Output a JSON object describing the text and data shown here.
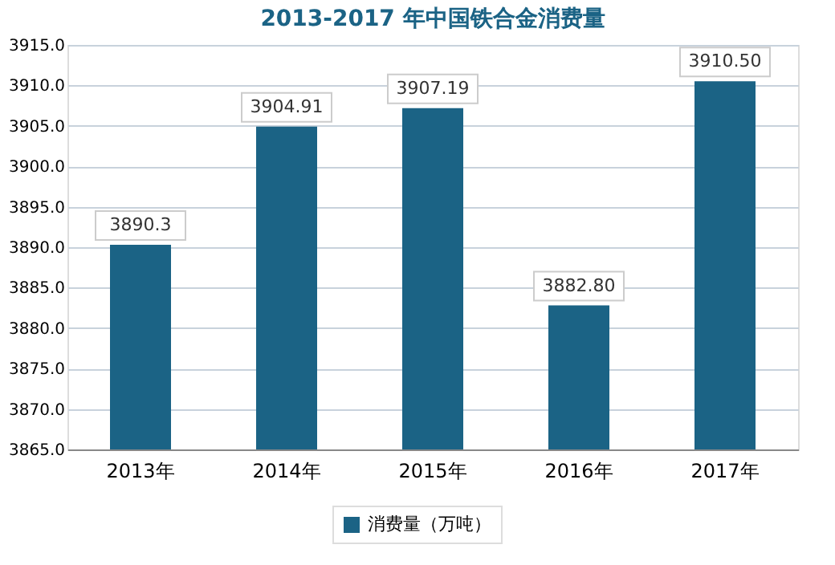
{
  "chart_data": {
    "type": "bar",
    "title": "2013-2017 年中国铁合金消费量",
    "categories": [
      "2013年",
      "2014年",
      "2015年",
      "2016年",
      "2017年"
    ],
    "series": [
      {
        "name": "消费量（万吨）",
        "color": "#1b6385",
        "values": [
          3890.3,
          3904.91,
          3907.19,
          3882.8,
          3910.5
        ],
        "value_labels": [
          "3890.3",
          "3904.91",
          "3907.19",
          "3882.80",
          "3910.50"
        ]
      }
    ],
    "ylim": [
      3865.0,
      3915.0
    ],
    "yticks": [
      {
        "value": 3865,
        "label": "3865.0"
      },
      {
        "value": 3870,
        "label": "3870.0"
      },
      {
        "value": 3875,
        "label": "3875.0"
      },
      {
        "value": 3880,
        "label": "3880.0"
      },
      {
        "value": 3885,
        "label": "3885.0"
      },
      {
        "value": 3890,
        "label": "3890.0"
      },
      {
        "value": 3895,
        "label": "3895.0"
      },
      {
        "value": 3900,
        "label": "3900.0"
      },
      {
        "value": 3905,
        "label": "3905.0"
      },
      {
        "value": 3910,
        "label": "3910.0"
      },
      {
        "value": 3915,
        "label": "3915.0"
      }
    ],
    "grid": "y",
    "legend": "bottom"
  }
}
